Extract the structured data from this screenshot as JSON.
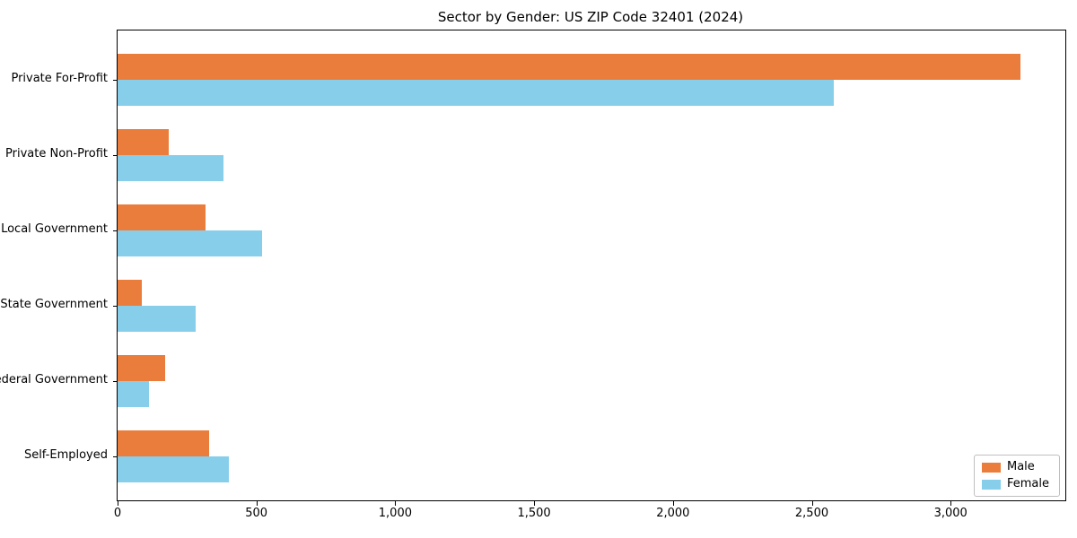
{
  "figure": {
    "title": "Sector by Gender: US ZIP Code 32401 (2024)"
  },
  "chart_data": {
    "type": "bar",
    "orientation": "horizontal",
    "title": "Sector by Gender: US ZIP Code 32401 (2024)",
    "categories": [
      "Private For-Profit",
      "Private Non-Profit",
      "Local Government",
      "State Government",
      "Federal Government",
      "Self-Employed"
    ],
    "series": [
      {
        "name": "Male",
        "color": "#eb7d3c",
        "values": [
          3250,
          185,
          315,
          87,
          172,
          330
        ]
      },
      {
        "name": "Female",
        "color": "#87ceeb",
        "values": [
          2580,
          380,
          520,
          280,
          112,
          400
        ]
      }
    ],
    "xlabel": "",
    "ylabel": "",
    "xlim": [
      0,
      3410
    ],
    "xticks": [
      0,
      500,
      1000,
      1500,
      2000,
      2500,
      3000
    ],
    "xtick_labels": [
      "0",
      "500",
      "1,000",
      "1,500",
      "2,000",
      "2,500",
      "3,000"
    ],
    "legend_position": "lower right",
    "grid": false
  }
}
